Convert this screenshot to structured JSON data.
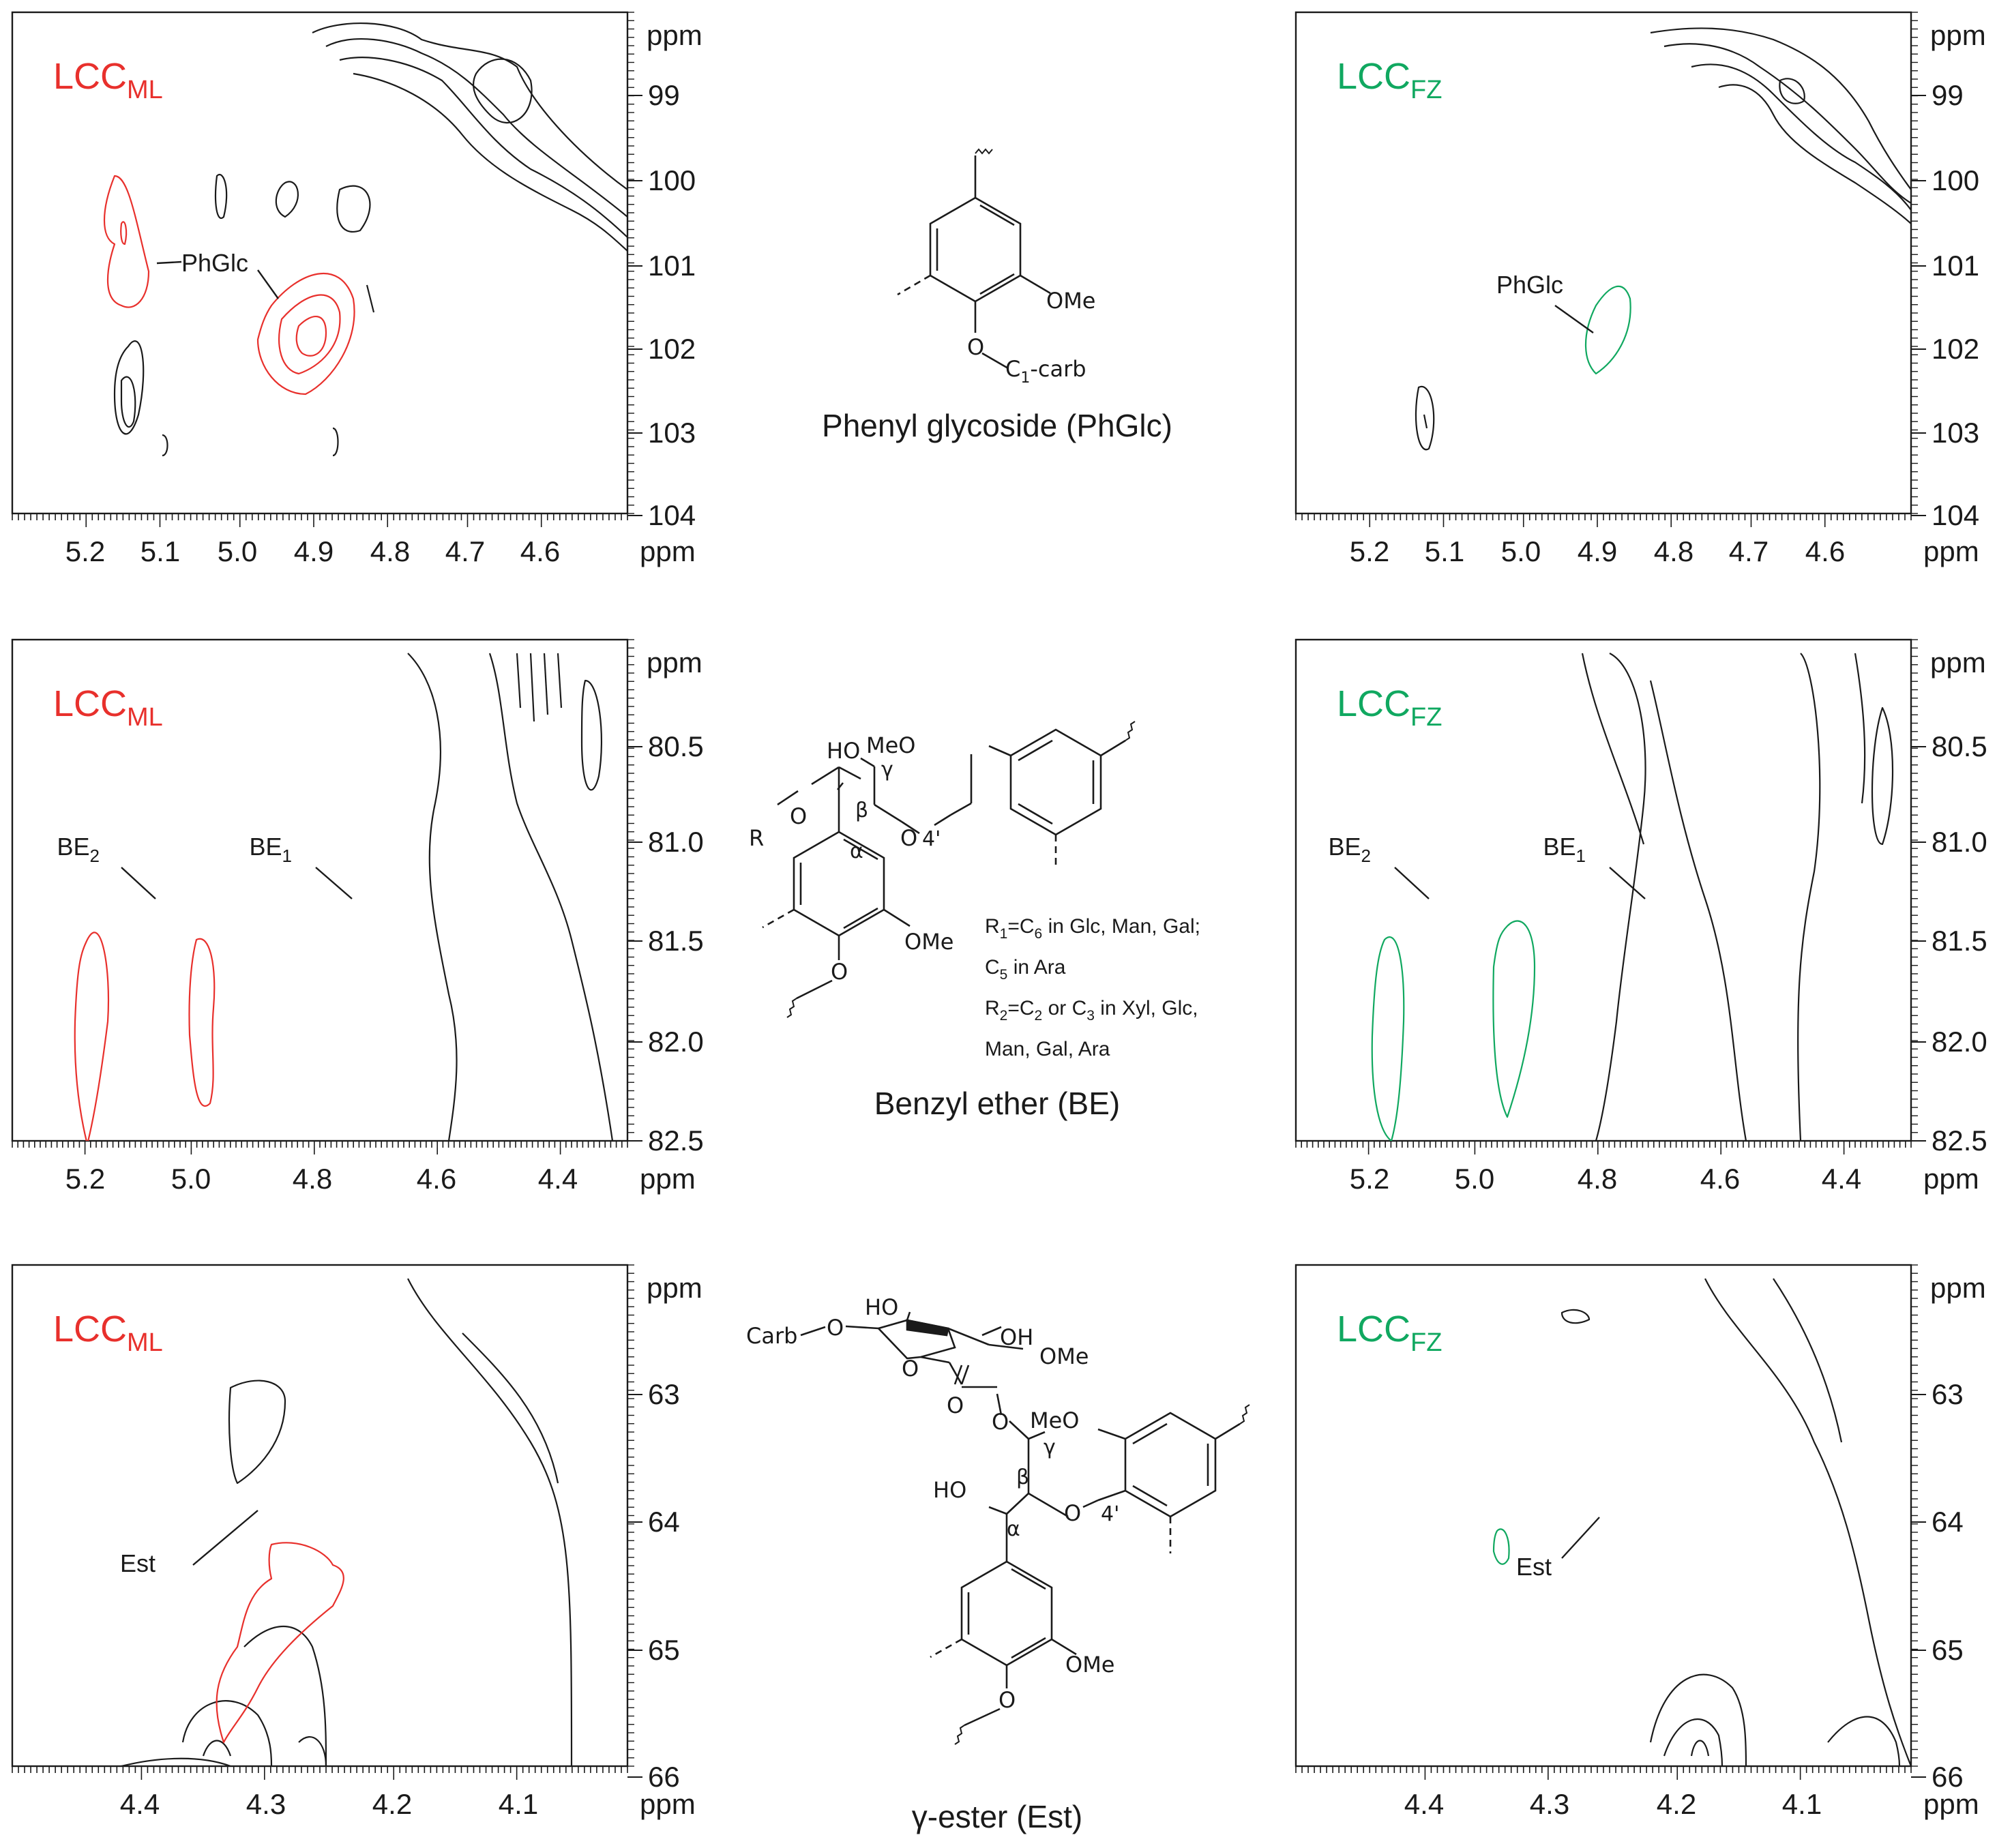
{
  "colors": {
    "ml": "#e8302c",
    "fz": "#10a860",
    "ink": "#1a1a1a"
  },
  "axis_unit": "ppm",
  "panels": [
    {
      "id": "ml-phglc",
      "sample": "ML",
      "title_main": "LCC",
      "title_sub": "ML",
      "x_ticks": [
        "5.2",
        "5.1",
        "5.0",
        "4.9",
        "4.8",
        "4.7",
        "4.6"
      ],
      "y_ticks": [
        "99",
        "100",
        "101",
        "102",
        "103",
        "104"
      ],
      "labels": [
        {
          "text": "PhGlc"
        }
      ]
    },
    {
      "id": "fz-phglc",
      "sample": "FZ",
      "title_main": "LCC",
      "title_sub": "FZ",
      "x_ticks": [
        "5.2",
        "5.1",
        "5.0",
        "4.9",
        "4.8",
        "4.7",
        "4.6"
      ],
      "y_ticks": [
        "99",
        "100",
        "101",
        "102",
        "103",
        "104"
      ],
      "labels": [
        {
          "text": "PhGlc"
        }
      ]
    },
    {
      "id": "ml-be",
      "sample": "ML",
      "title_main": "LCC",
      "title_sub": "ML",
      "x_ticks": [
        "5.2",
        "5.0",
        "4.8",
        "4.6",
        "4.4"
      ],
      "y_ticks": [
        "80.5",
        "81.0",
        "81.5",
        "82.0",
        "82.5"
      ],
      "labels": [
        {
          "text": "BE",
          "sub": "2"
        },
        {
          "text": "BE",
          "sub": "1"
        }
      ]
    },
    {
      "id": "fz-be",
      "sample": "FZ",
      "title_main": "LCC",
      "title_sub": "FZ",
      "x_ticks": [
        "5.2",
        "5.0",
        "4.8",
        "4.6",
        "4.4"
      ],
      "y_ticks": [
        "80.5",
        "81.0",
        "81.5",
        "82.0",
        "82.5"
      ],
      "labels": [
        {
          "text": "BE",
          "sub": "2"
        },
        {
          "text": "BE",
          "sub": "1"
        }
      ]
    },
    {
      "id": "ml-est",
      "sample": "ML",
      "title_main": "LCC",
      "title_sub": "ML",
      "x_ticks": [
        "4.4",
        "4.3",
        "4.2",
        "4.1"
      ],
      "y_ticks": [
        "63",
        "64",
        "65",
        "66"
      ],
      "labels": [
        {
          "text": "Est"
        }
      ]
    },
    {
      "id": "fz-est",
      "sample": "FZ",
      "title_main": "LCC",
      "title_sub": "FZ",
      "x_ticks": [
        "4.4",
        "4.3",
        "4.2",
        "4.1"
      ],
      "y_ticks": [
        "63",
        "64",
        "65",
        "66"
      ],
      "labels": [
        {
          "text": "Est"
        }
      ]
    }
  ],
  "structures": {
    "phglc": {
      "caption": "Phenyl glycoside (PhGlc)",
      "labels": {
        "ome": "OMe",
        "o": "O",
        "c1_c": "C",
        "c1_sub": "1",
        "c1_rest": "-carb"
      }
    },
    "be": {
      "caption": "Benzyl ether (BE)",
      "labels": {
        "ho": "HO",
        "meo": "MeO",
        "gamma": "γ",
        "beta": "β",
        "alpha": "α",
        "o_top": "O",
        "four_prime": "4'",
        "r": "R",
        "o_left": "O",
        "ome": "OMe",
        "o_bottom": "O"
      },
      "notes": [
        [
          "R",
          "1",
          "=C",
          "6",
          " in Glc, Man, Gal;"
        ],
        [
          "C",
          "5",
          " in Ara"
        ],
        [
          "R",
          "2",
          "=C",
          "2",
          " or C",
          "3",
          " in Xyl, Glc,"
        ],
        [
          "Man, Gal, Ara"
        ]
      ]
    },
    "est": {
      "caption": "γ-ester (Est)",
      "labels": {
        "carb": "Carb",
        "o1": "O",
        "ho_ring": "HO",
        "oh_ring": "OH",
        "ome_top": "OMe",
        "o_ring": "O",
        "o_carbonyl": "O",
        "o_ester": "O",
        "meo": "MeO",
        "gamma": "γ",
        "beta": "β",
        "alpha": "α",
        "ho": "HO",
        "o_mid": "O",
        "four_prime": "4'",
        "ome": "OMe",
        "o_bottom": "O"
      }
    }
  }
}
